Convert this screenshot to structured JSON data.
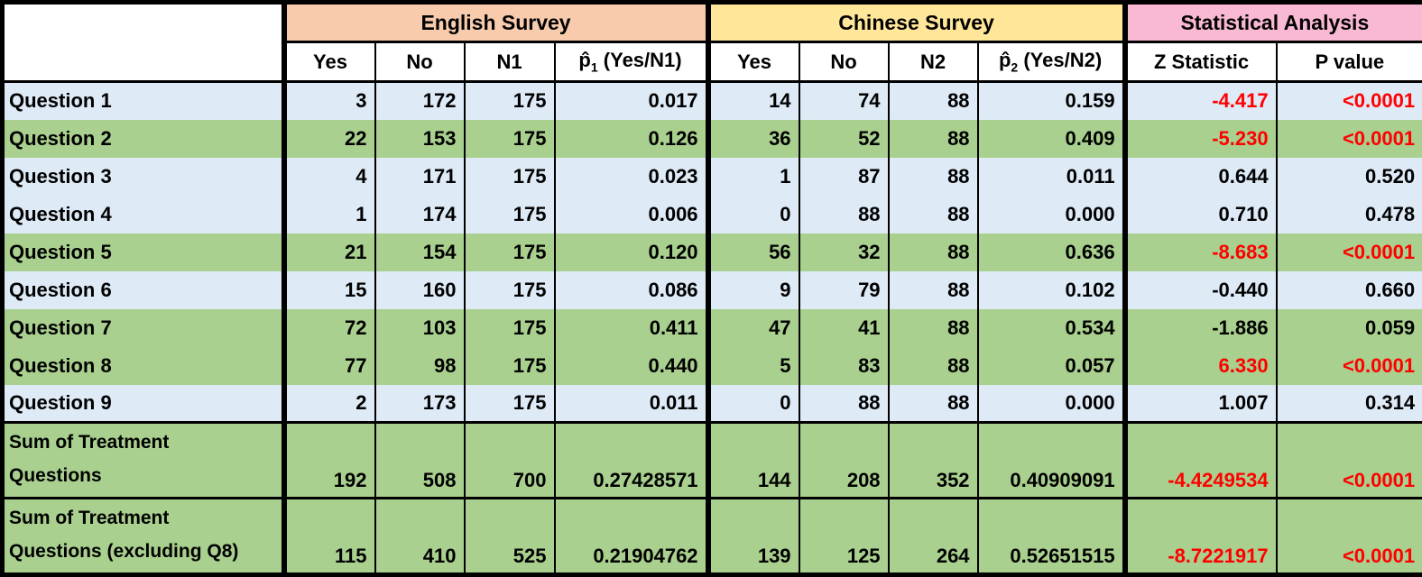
{
  "table": {
    "groups": [
      {
        "label": "English Survey",
        "color": "#F8CBAD"
      },
      {
        "label": "Chinese Survey",
        "color": "#FFE699"
      },
      {
        "label": "Statistical Analysis",
        "color": "#F9B8D4"
      }
    ],
    "columns": {
      "en": {
        "yes": "Yes",
        "no": "No",
        "n": "N1",
        "p_base": "p̂",
        "p_sub": "1",
        "p_rest": " (Yes/N1)"
      },
      "cn": {
        "yes": "Yes",
        "no": "No",
        "n": "N2",
        "p_base": "p̂",
        "p_sub": "2",
        "p_rest": " (Yes/N2)"
      },
      "stat": {
        "z": "Z Statistic",
        "p": "P value"
      }
    },
    "rows": [
      {
        "label": "Question 1",
        "shade": "blue",
        "tall": false,
        "en": [
          "3",
          "172",
          "175",
          "0.017"
        ],
        "cn": [
          "14",
          "74",
          "88",
          "0.159"
        ],
        "z": "-4.417",
        "p": "<0.0001",
        "red": true
      },
      {
        "label": "Question 2",
        "shade": "green",
        "tall": false,
        "en": [
          "22",
          "153",
          "175",
          "0.126"
        ],
        "cn": [
          "36",
          "52",
          "88",
          "0.409"
        ],
        "z": "-5.230",
        "p": "<0.0001",
        "red": true
      },
      {
        "label": "Question 3",
        "shade": "blue",
        "tall": false,
        "en": [
          "4",
          "171",
          "175",
          "0.023"
        ],
        "cn": [
          "1",
          "87",
          "88",
          "0.011"
        ],
        "z": "0.644",
        "p": "0.520",
        "red": false
      },
      {
        "label": "Question 4",
        "shade": "blue",
        "tall": false,
        "en": [
          "1",
          "174",
          "175",
          "0.006"
        ],
        "cn": [
          "0",
          "88",
          "88",
          "0.000"
        ],
        "z": "0.710",
        "p": "0.478",
        "red": false
      },
      {
        "label": "Question 5",
        "shade": "green",
        "tall": false,
        "en": [
          "21",
          "154",
          "175",
          "0.120"
        ],
        "cn": [
          "56",
          "32",
          "88",
          "0.636"
        ],
        "z": "-8.683",
        "p": "<0.0001",
        "red": true
      },
      {
        "label": "Question 6",
        "shade": "blue",
        "tall": false,
        "en": [
          "15",
          "160",
          "175",
          "0.086"
        ],
        "cn": [
          "9",
          "79",
          "88",
          "0.102"
        ],
        "z": "-0.440",
        "p": "0.660",
        "red": false
      },
      {
        "label": "Question 7",
        "shade": "green",
        "tall": false,
        "en": [
          "72",
          "103",
          "175",
          "0.411"
        ],
        "cn": [
          "47",
          "41",
          "88",
          "0.534"
        ],
        "z": "-1.886",
        "p": "0.059",
        "red": false
      },
      {
        "label": "Question 8",
        "shade": "green",
        "tall": false,
        "en": [
          "77",
          "98",
          "175",
          "0.440"
        ],
        "cn": [
          "5",
          "83",
          "88",
          "0.057"
        ],
        "z": "6.330",
        "p": "<0.0001",
        "red": true
      },
      {
        "label": "Question 9",
        "shade": "blue",
        "tall": false,
        "en": [
          "2",
          "173",
          "175",
          "0.011"
        ],
        "cn": [
          "0",
          "88",
          "88",
          "0.000"
        ],
        "z": "1.007",
        "p": "0.314",
        "red": false
      },
      {
        "label": "Sum of Treatment\nQuestions",
        "shade": "green",
        "tall": true,
        "en": [
          "192",
          "508",
          "700",
          "0.27428571"
        ],
        "cn": [
          "144",
          "208",
          "352",
          "0.40909091"
        ],
        "z": "-4.4249534",
        "p": "<0.0001",
        "red": true
      },
      {
        "label": "Sum of Treatment\nQuestions (excluding Q8)",
        "shade": "green",
        "tall": true,
        "en": [
          "115",
          "410",
          "525",
          "0.21904762"
        ],
        "cn": [
          "139",
          "125",
          "264",
          "0.52651515"
        ],
        "z": "-8.7221917",
        "p": "<0.0001",
        "red": true
      }
    ]
  },
  "colors": {
    "english_header": "#F8CBAD",
    "chinese_header": "#FFE699",
    "stat_header": "#F9B8D4",
    "row_blue": "#DEEAF6",
    "row_green": "#A9D08E",
    "significant_text": "#FF0000",
    "border": "#000000"
  }
}
